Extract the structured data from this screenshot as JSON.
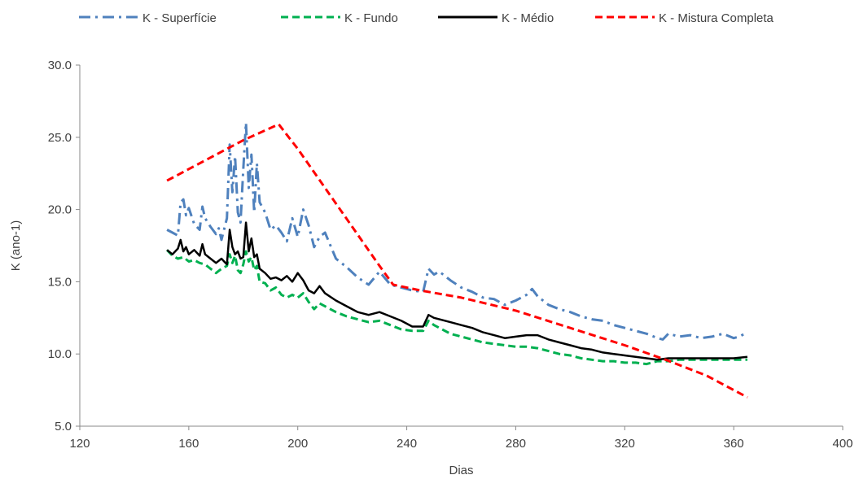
{
  "chart_data": {
    "type": "line",
    "title": "",
    "xlabel": "Dias",
    "ylabel": "K (ano-1)",
    "xlim": [
      120,
      400
    ],
    "ylim": [
      5,
      30
    ],
    "x_ticks": [
      120,
      160,
      200,
      240,
      280,
      320,
      360,
      400
    ],
    "y_ticks": [
      5,
      10,
      15,
      20,
      25,
      30
    ],
    "x_tick_labels": [
      "120",
      "160",
      "200",
      "240",
      "280",
      "320",
      "360",
      "400"
    ],
    "y_tick_labels": [
      "5.0",
      "10.0",
      "15.0",
      "20.0",
      "25.0",
      "30.0"
    ],
    "grid": false,
    "legend_position": "top",
    "series": [
      {
        "name": "K - Superfície",
        "color": "#4f81bd",
        "style": "dash-dot",
        "x": [
          152,
          154,
          156,
          157,
          158,
          159,
          160,
          162,
          164,
          165,
          166,
          168,
          170,
          171,
          172,
          174,
          175,
          176,
          177,
          178,
          179,
          180,
          181,
          182,
          183,
          184,
          185,
          186,
          188,
          190,
          192,
          194,
          196,
          198,
          200,
          202,
          204,
          206,
          208,
          210,
          214,
          218,
          222,
          226,
          230,
          234,
          238,
          242,
          246,
          248,
          250,
          252,
          256,
          260,
          264,
          268,
          272,
          276,
          280,
          284,
          286,
          288,
          292,
          296,
          300,
          304,
          308,
          312,
          316,
          320,
          324,
          328,
          332,
          334,
          336,
          340,
          344,
          348,
          352,
          356,
          360,
          362,
          365
        ],
        "values": [
          18.6,
          18.4,
          18.2,
          20.5,
          20.7,
          19.6,
          20.1,
          19.0,
          18.6,
          20.2,
          19.4,
          18.8,
          18.3,
          18.7,
          17.9,
          19.4,
          24.5,
          21.2,
          23.7,
          19.8,
          19.1,
          22.8,
          26.0,
          21.5,
          23.8,
          19.8,
          23.2,
          20.5,
          19.8,
          18.6,
          18.9,
          18.4,
          17.8,
          19.4,
          18.1,
          20.0,
          18.9,
          17.4,
          18.1,
          18.4,
          16.6,
          16.0,
          15.3,
          14.8,
          15.7,
          14.8,
          14.6,
          14.4,
          14.3,
          15.9,
          15.5,
          15.7,
          15.1,
          14.6,
          14.3,
          13.9,
          13.8,
          13.4,
          13.7,
          14.1,
          14.5,
          14.0,
          13.4,
          13.1,
          12.9,
          12.6,
          12.4,
          12.3,
          12.0,
          11.8,
          11.6,
          11.4,
          11.1,
          11.0,
          11.4,
          11.2,
          11.3,
          11.1,
          11.2,
          11.4,
          11.1,
          11.2,
          11.5
        ]
      },
      {
        "name": "K - Fundo",
        "color": "#00b050",
        "style": "dashed",
        "x": [
          152,
          154,
          156,
          158,
          160,
          162,
          164,
          166,
          168,
          170,
          172,
          174,
          175,
          176,
          177,
          178,
          179,
          180,
          181,
          182,
          183,
          184,
          185,
          186,
          188,
          190,
          192,
          194,
          196,
          198,
          200,
          202,
          204,
          206,
          208,
          210,
          214,
          218,
          222,
          226,
          230,
          234,
          238,
          242,
          246,
          248,
          250,
          252,
          256,
          260,
          264,
          268,
          272,
          276,
          280,
          284,
          288,
          292,
          296,
          300,
          304,
          308,
          312,
          316,
          320,
          324,
          328,
          332,
          336,
          340,
          344,
          348,
          352,
          356,
          360,
          365
        ],
        "values": [
          17.2,
          16.8,
          16.6,
          16.7,
          16.4,
          16.5,
          16.3,
          16.2,
          15.9,
          15.6,
          15.9,
          16.1,
          16.9,
          16.3,
          16.8,
          15.8,
          15.6,
          16.2,
          17.1,
          16.4,
          16.7,
          15.8,
          16.1,
          15.0,
          14.9,
          14.4,
          14.6,
          14.1,
          13.9,
          14.1,
          13.9,
          14.2,
          13.6,
          13.1,
          13.5,
          13.3,
          12.9,
          12.6,
          12.4,
          12.2,
          12.3,
          12.0,
          11.7,
          11.6,
          11.6,
          12.3,
          12.0,
          11.8,
          11.4,
          11.2,
          11.0,
          10.8,
          10.7,
          10.6,
          10.5,
          10.5,
          10.4,
          10.2,
          10.0,
          9.9,
          9.7,
          9.6,
          9.5,
          9.5,
          9.4,
          9.4,
          9.3,
          9.5,
          9.5,
          9.6,
          9.6,
          9.6,
          9.6,
          9.6,
          9.6,
          9.6
        ]
      },
      {
        "name": "K - Médio",
        "color": "#000000",
        "style": "solid",
        "x": [
          152,
          154,
          156,
          157,
          158,
          159,
          160,
          162,
          164,
          165,
          166,
          168,
          170,
          172,
          174,
          175,
          176,
          177,
          178,
          179,
          180,
          181,
          182,
          183,
          184,
          185,
          186,
          188,
          190,
          192,
          194,
          196,
          198,
          200,
          202,
          204,
          206,
          208,
          210,
          214,
          218,
          222,
          226,
          230,
          234,
          238,
          242,
          246,
          248,
          250,
          252,
          256,
          260,
          264,
          268,
          272,
          276,
          280,
          284,
          288,
          292,
          296,
          300,
          304,
          308,
          312,
          316,
          320,
          324,
          328,
          332,
          336,
          340,
          344,
          348,
          352,
          356,
          360,
          365
        ],
        "values": [
          17.2,
          16.9,
          17.3,
          17.9,
          17.1,
          17.4,
          16.9,
          17.2,
          16.8,
          17.6,
          16.9,
          16.6,
          16.3,
          16.6,
          16.2,
          18.6,
          17.4,
          16.9,
          17.1,
          16.6,
          16.7,
          19.1,
          17.1,
          18.0,
          16.7,
          16.9,
          15.9,
          15.6,
          15.2,
          15.3,
          15.1,
          15.4,
          15.0,
          15.6,
          15.1,
          14.4,
          14.2,
          14.7,
          14.2,
          13.7,
          13.3,
          12.9,
          12.7,
          12.9,
          12.6,
          12.3,
          11.9,
          11.9,
          12.7,
          12.5,
          12.4,
          12.2,
          12.0,
          11.8,
          11.5,
          11.3,
          11.1,
          11.2,
          11.3,
          11.3,
          11.0,
          10.8,
          10.6,
          10.4,
          10.3,
          10.1,
          10.0,
          9.9,
          9.8,
          9.7,
          9.6,
          9.7,
          9.7,
          9.7,
          9.7,
          9.7,
          9.7,
          9.7,
          9.8
        ]
      },
      {
        "name": "K - Mistura Completa",
        "color": "#ff0000",
        "style": "dashed",
        "x": [
          152,
          165,
          180,
          193,
          200,
          210,
          220,
          230,
          235,
          245,
          260,
          280,
          300,
          320,
          335,
          350,
          365
        ],
        "values": [
          22.0,
          23.3,
          24.8,
          25.9,
          24.2,
          21.5,
          18.8,
          16.1,
          14.8,
          14.4,
          13.9,
          13.0,
          11.8,
          10.6,
          9.6,
          8.5,
          7.0
        ]
      }
    ]
  }
}
